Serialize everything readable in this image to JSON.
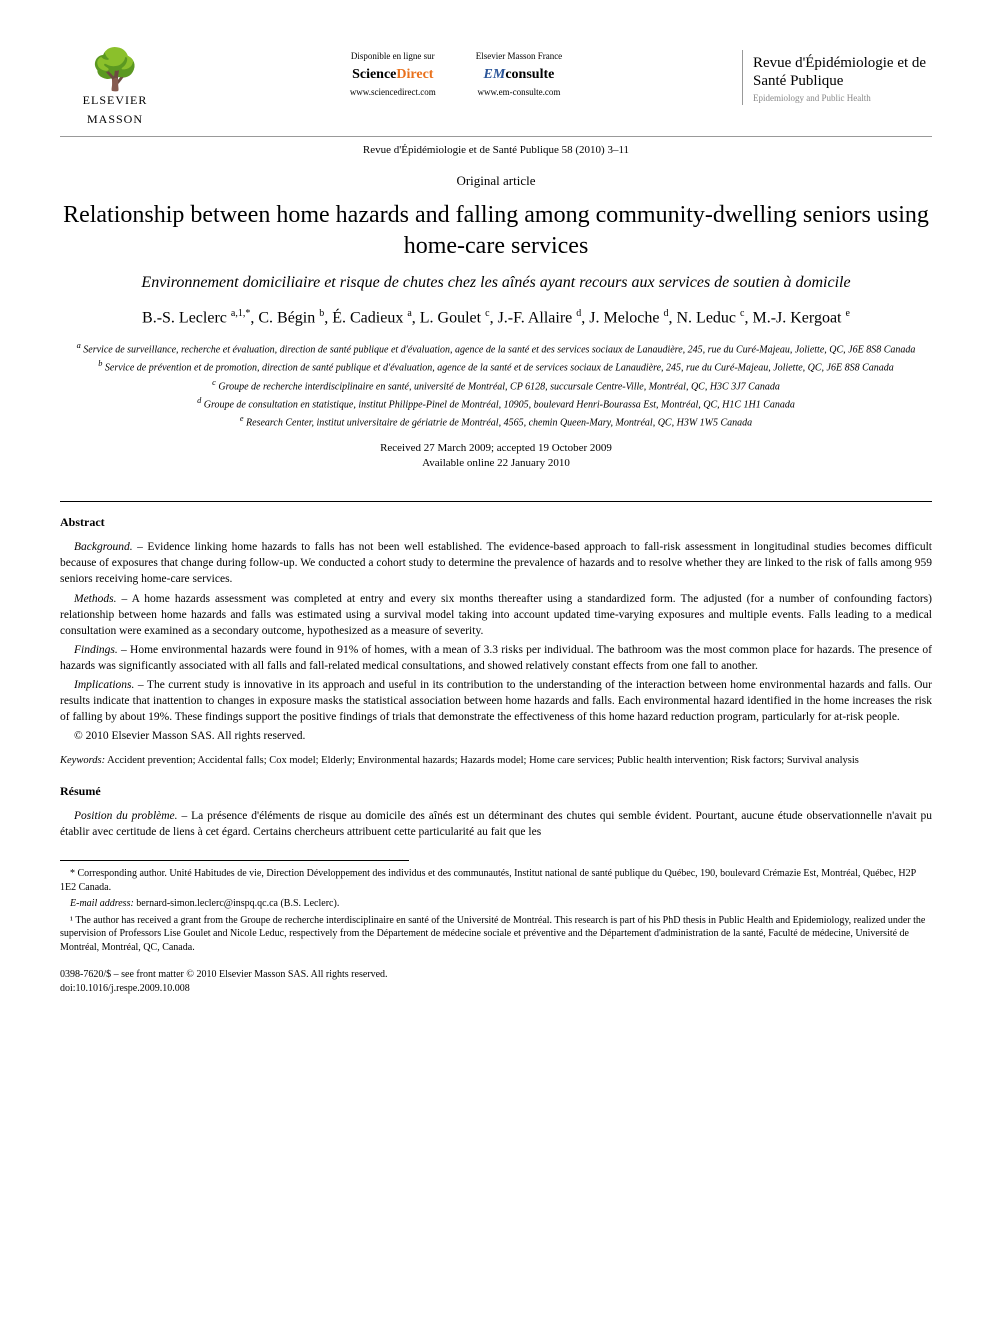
{
  "header": {
    "publisher_name": "ELSEVIER",
    "publisher_sub": "MASSON",
    "portal_left_label": "Disponible en ligne sur",
    "portal_left_logo1": "Science",
    "portal_left_logo2": "Direct",
    "portal_left_url": "www.sciencedirect.com",
    "portal_right_label": "Elsevier Masson France",
    "portal_right_logo1": "EM",
    "portal_right_logo2": "consulte",
    "portal_right_url": "www.em-consulte.com",
    "journal_title": "Revue d'Épidémiologie et de Santé Publique",
    "journal_sub": "Epidemiology and Public Health"
  },
  "citation": "Revue d'Épidémiologie et de Santé Publique 58 (2010) 3–11",
  "article_type": "Original article",
  "title_en": "Relationship between home hazards and falling among community-dwelling seniors using home-care services",
  "title_fr": "Environnement domiciliaire et risque de chutes chez les aînés ayant recours aux services de soutien à domicile",
  "authors_html": "B.-S. Leclerc <sup>a,1,*</sup>, C. Bégin <sup>b</sup>, É. Cadieux <sup>a</sup>, L. Goulet <sup>c</sup>, J.-F. Allaire <sup>d</sup>, J. Meloche <sup>d</sup>, N. Leduc <sup>c</sup>, M.-J. Kergoat <sup>e</sup>",
  "affiliations": {
    "a": "Service de surveillance, recherche et évaluation, direction de santé publique et d'évaluation, agence de la santé et des services sociaux de Lanaudière, 245, rue du Curé-Majeau, Joliette, QC, J6E 8S8 Canada",
    "b": "Service de prévention et de promotion, direction de santé publique et d'évaluation, agence de la santé et de services sociaux de Lanaudière, 245, rue du Curé-Majeau, Joliette, QC, J6E 8S8 Canada",
    "c": "Groupe de recherche interdisciplinaire en santé, université de Montréal, CP 6128, succursale Centre-Ville, Montréal, QC, H3C 3J7 Canada",
    "d": "Groupe de consultation en statistique, institut Philippe-Pinel de Montréal, 10905, boulevard Henri-Bourassa Est, Montréal, QC, H1C 1H1 Canada",
    "e": "Research Center, institut universitaire de gériatrie de Montréal, 4565, chemin Queen-Mary, Montréal, QC, H3W 1W5 Canada"
  },
  "dates": {
    "received_accepted": "Received 27 March 2009; accepted 19 October 2009",
    "online": "Available online 22 January 2010"
  },
  "abstract": {
    "heading": "Abstract",
    "background_label": "Background. –",
    "background": "Evidence linking home hazards to falls has not been well established. The evidence-based approach to fall-risk assessment in longitudinal studies becomes difficult because of exposures that change during follow-up. We conducted a cohort study to determine the prevalence of hazards and to resolve whether they are linked to the risk of falls among 959 seniors receiving home-care services.",
    "methods_label": "Methods. –",
    "methods": "A home hazards assessment was completed at entry and every six months thereafter using a standardized form. The adjusted (for a number of confounding factors) relationship between home hazards and falls was estimated using a survival model taking into account updated time-varying exposures and multiple events. Falls leading to a medical consultation were examined as a secondary outcome, hypothesized as a measure of severity.",
    "findings_label": "Findings. –",
    "findings": "Home environmental hazards were found in 91% of homes, with a mean of 3.3 risks per individual. The bathroom was the most common place for hazards. The presence of hazards was significantly associated with all falls and fall-related medical consultations, and showed relatively constant effects from one fall to another.",
    "implications_label": "Implications. –",
    "implications": "The current study is innovative in its approach and useful in its contribution to the understanding of the interaction between home environmental hazards and falls. Our results indicate that inattention to changes in exposure masks the statistical association between home hazards and falls. Each environmental hazard identified in the home increases the risk of falling by about 19%. These findings support the positive findings of trials that demonstrate the effectiveness of this home hazard reduction program, particularly for at-risk people.",
    "copyright": "© 2010 Elsevier Masson SAS. All rights reserved."
  },
  "keywords": {
    "label": "Keywords:",
    "text": "Accident prevention; Accidental falls; Cox model; Elderly; Environmental hazards; Hazards model; Home care services; Public health intervention; Risk factors; Survival analysis"
  },
  "resume": {
    "heading": "Résumé",
    "position_label": "Position du problème. –",
    "position": "La présence d'éléments de risque au domicile des aînés est un déterminant des chutes qui semble évident. Pourtant, aucune étude observationnelle n'avait pu établir avec certitude de liens à cet égard. Certains chercheurs attribuent cette particularité au fait que les"
  },
  "footnotes": {
    "corresponding": "* Corresponding author. Unité Habitudes de vie, Direction Développement des individus et des communautés, Institut national de santé publique du Québec, 190, boulevard Crémazie Est, Montréal, Québec, H2P 1E2 Canada.",
    "email_label": "E-mail address:",
    "email": "bernard-simon.leclerc@inspq.qc.ca",
    "email_name": "(B.S. Leclerc).",
    "note1": "¹ The author has received a grant from the Groupe de recherche interdisciplinaire en santé of the Université de Montréal. This research is part of his PhD thesis in Public Health and Epidemiology, realized under the supervision of Professors Lise Goulet and Nicole Leduc, respectively from the Département de médecine sociale et préventive and the Département d'administration de la santé, Faculté de médecine, Université de Montréal, Montréal, QC, Canada."
  },
  "footer": {
    "issn": "0398-7620/$ – see front matter © 2010 Elsevier Masson SAS. All rights reserved.",
    "doi": "doi:10.1016/j.respe.2009.10.008"
  }
}
